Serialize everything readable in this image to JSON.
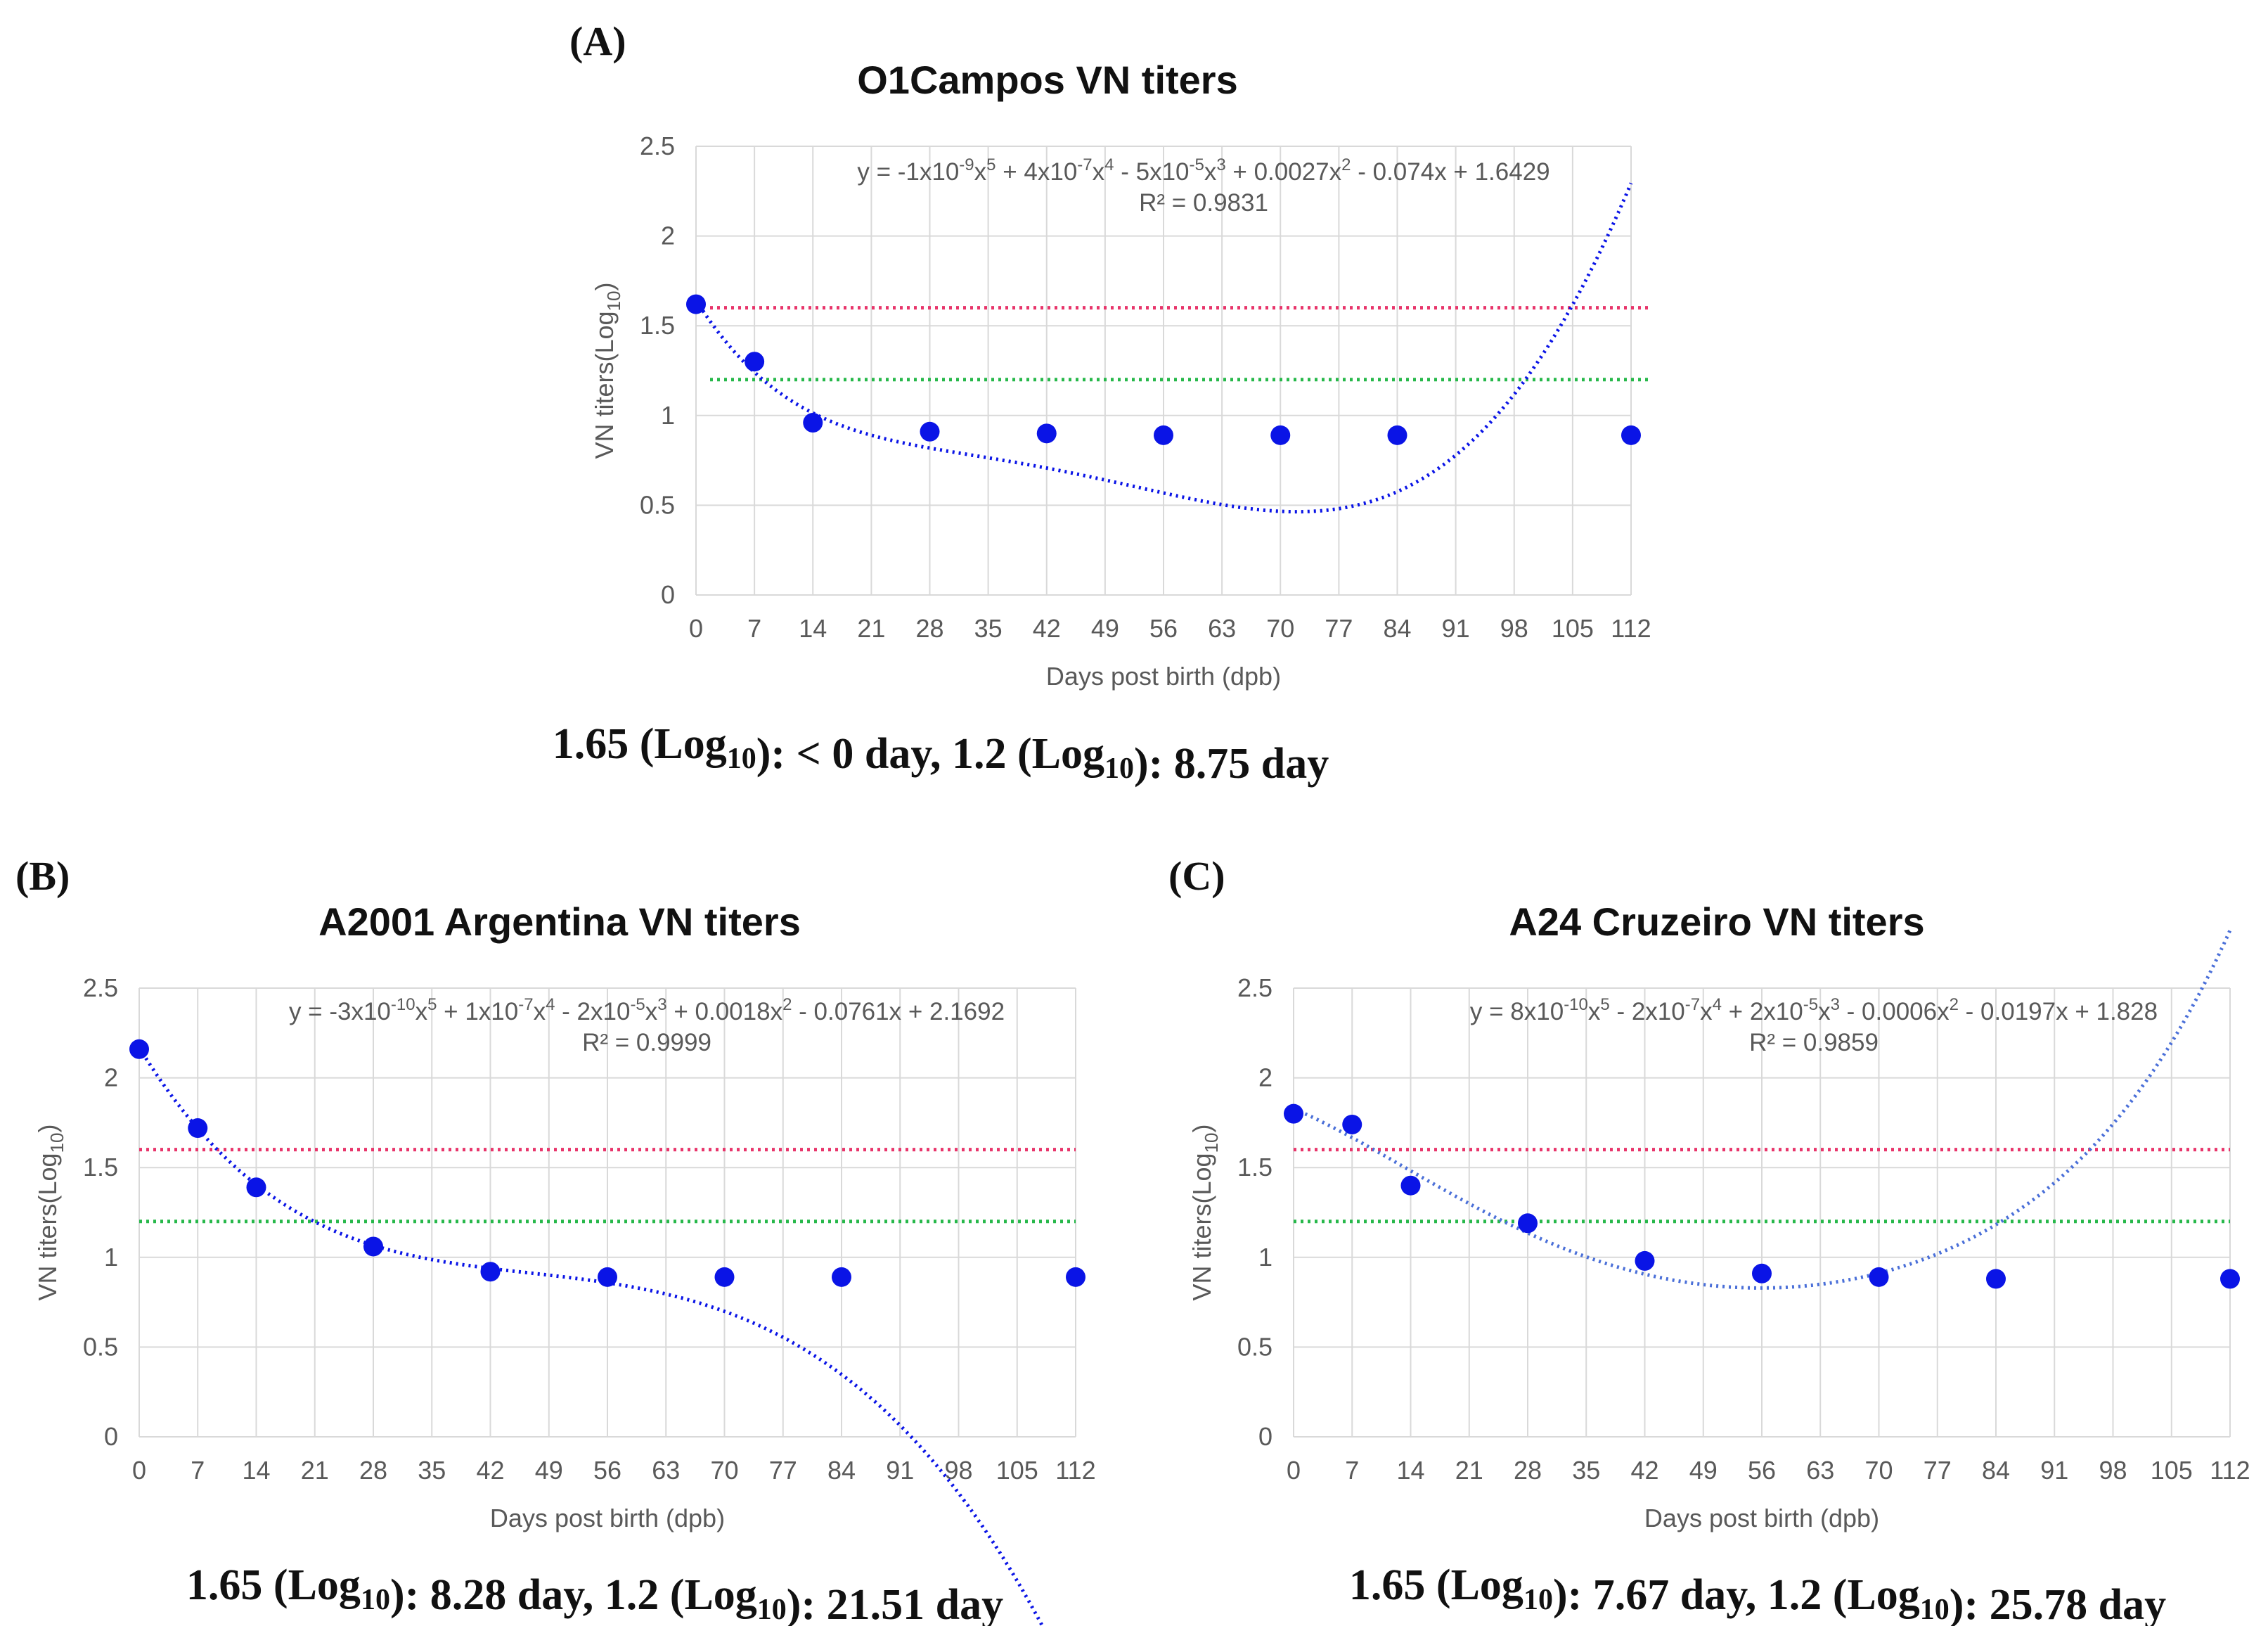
{
  "chart_data": [
    {
      "type": "scatter",
      "panel": "(A)",
      "title": "O1Campos VN titers",
      "xlabel": "Days post birth (dpb)",
      "ylabel_main": "VN titers(Log",
      "ylabel_sub": "10",
      "ylabel_end": ")",
      "x_ticks": [
        "0",
        "7",
        "14",
        "21",
        "28",
        "35",
        "42",
        "49",
        "56",
        "63",
        "70",
        "77",
        "84",
        "91",
        "98",
        "105",
        "112"
      ],
      "y_ticks": [
        "0",
        "0.5",
        "1",
        "1.5",
        "2",
        "2.5"
      ],
      "xlim": [
        0,
        112
      ],
      "ylim": [
        0,
        2.5
      ],
      "x": [
        0,
        7,
        14,
        28,
        42,
        56,
        70,
        84,
        112
      ],
      "y": [
        1.62,
        1.3,
        0.96,
        0.91,
        0.9,
        0.89,
        0.89,
        0.89,
        0.89
      ],
      "trendline": {
        "type": "polynomial",
        "order": 5,
        "coefficients": [
          -1e-09,
          4e-07,
          -5e-05,
          0.0027,
          -0.074,
          1.6429
        ],
        "equation": "y = -1x10-9x5 + 4x10-7x4 - 5x10-5x3 + 0.0027x2 - 0.074x + 1.6429",
        "r2": "R² = 0.9831"
      },
      "thresholds": [
        {
          "value": 1.6,
          "color": "#e8356b"
        },
        {
          "value": 1.2,
          "color": "#27b84a"
        }
      ],
      "series_color": "#0a14e6",
      "footer": "1.65 (Log10): < 0 day, 1.2 (Log10): 8.75 day",
      "grid": true
    },
    {
      "type": "scatter",
      "panel": "(B)",
      "title": "A2001 Argentina VN titers",
      "xlabel": "Days post birth (dpb)",
      "ylabel_main": "VN titers(Log",
      "ylabel_sub": "10",
      "ylabel_end": ")",
      "x_ticks": [
        "0",
        "7",
        "14",
        "21",
        "28",
        "35",
        "42",
        "49",
        "56",
        "63",
        "70",
        "77",
        "84",
        "91",
        "98",
        "105",
        "112"
      ],
      "y_ticks": [
        "0",
        "0.5",
        "1",
        "1.5",
        "2",
        "2.5"
      ],
      "xlim": [
        0,
        112
      ],
      "ylim": [
        0,
        2.5
      ],
      "x": [
        0,
        7,
        14,
        28,
        42,
        56,
        70,
        84,
        112
      ],
      "y": [
        2.16,
        1.72,
        1.39,
        1.06,
        0.92,
        0.89,
        0.89,
        0.89,
        0.89
      ],
      "trendline": {
        "type": "polynomial",
        "order": 5,
        "coefficients": [
          -3e-10,
          1e-07,
          -2e-05,
          0.0018,
          -0.0761,
          2.1692
        ],
        "equation": "y = -3x10-10x5 + 1x10-7x4 - 2x10-5x3 + 0.0018x2 - 0.0761x + 2.1692",
        "r2": "R² = 0.9999"
      },
      "thresholds": [
        {
          "value": 1.6,
          "color": "#e8356b"
        },
        {
          "value": 1.2,
          "color": "#27b84a"
        }
      ],
      "series_color": "#0a14e6",
      "footer": "1.65 (Log10): 8.28 day, 1.2 (Log10): 21.51 day",
      "grid": true
    },
    {
      "type": "scatter",
      "panel": "(C)",
      "title": "A24 Cruzeiro VN titers",
      "xlabel": "Days post birth (dpb)",
      "ylabel_main": "VN titers(Log",
      "ylabel_sub": "10",
      "ylabel_end": ")",
      "x_ticks": [
        "0",
        "7",
        "14",
        "21",
        "28",
        "35",
        "42",
        "49",
        "56",
        "63",
        "70",
        "77",
        "84",
        "91",
        "98",
        "105",
        "112"
      ],
      "y_ticks": [
        "0",
        "0.5",
        "1",
        "1.5",
        "2",
        "2.5"
      ],
      "xlim": [
        0,
        112
      ],
      "ylim": [
        0,
        2.5
      ],
      "x": [
        0,
        7,
        14,
        28,
        42,
        56,
        70,
        84,
        112
      ],
      "y": [
        1.8,
        1.74,
        1.4,
        1.19,
        0.98,
        0.91,
        0.89,
        0.88,
        0.88
      ],
      "trendline": {
        "type": "polynomial",
        "order": 5,
        "coefficients": [
          8e-10,
          -2e-07,
          2e-05,
          -0.0006,
          -0.0197,
          1.828
        ],
        "equation": "y = 8x10-10x5 - 2x10-7x4 + 2x10-5x3 - 0.0006x2 - 0.0197x + 1.828",
        "r2": "R² = 0.9859"
      },
      "thresholds": [
        {
          "value": 1.6,
          "color": "#e8356b"
        },
        {
          "value": 1.2,
          "color": "#27b84a"
        }
      ],
      "series_color": "#0a14e6",
      "footer": "1.65 (Log10): 7.67 day, 1.2 (Log10): 25.78 day",
      "grid": true
    }
  ]
}
